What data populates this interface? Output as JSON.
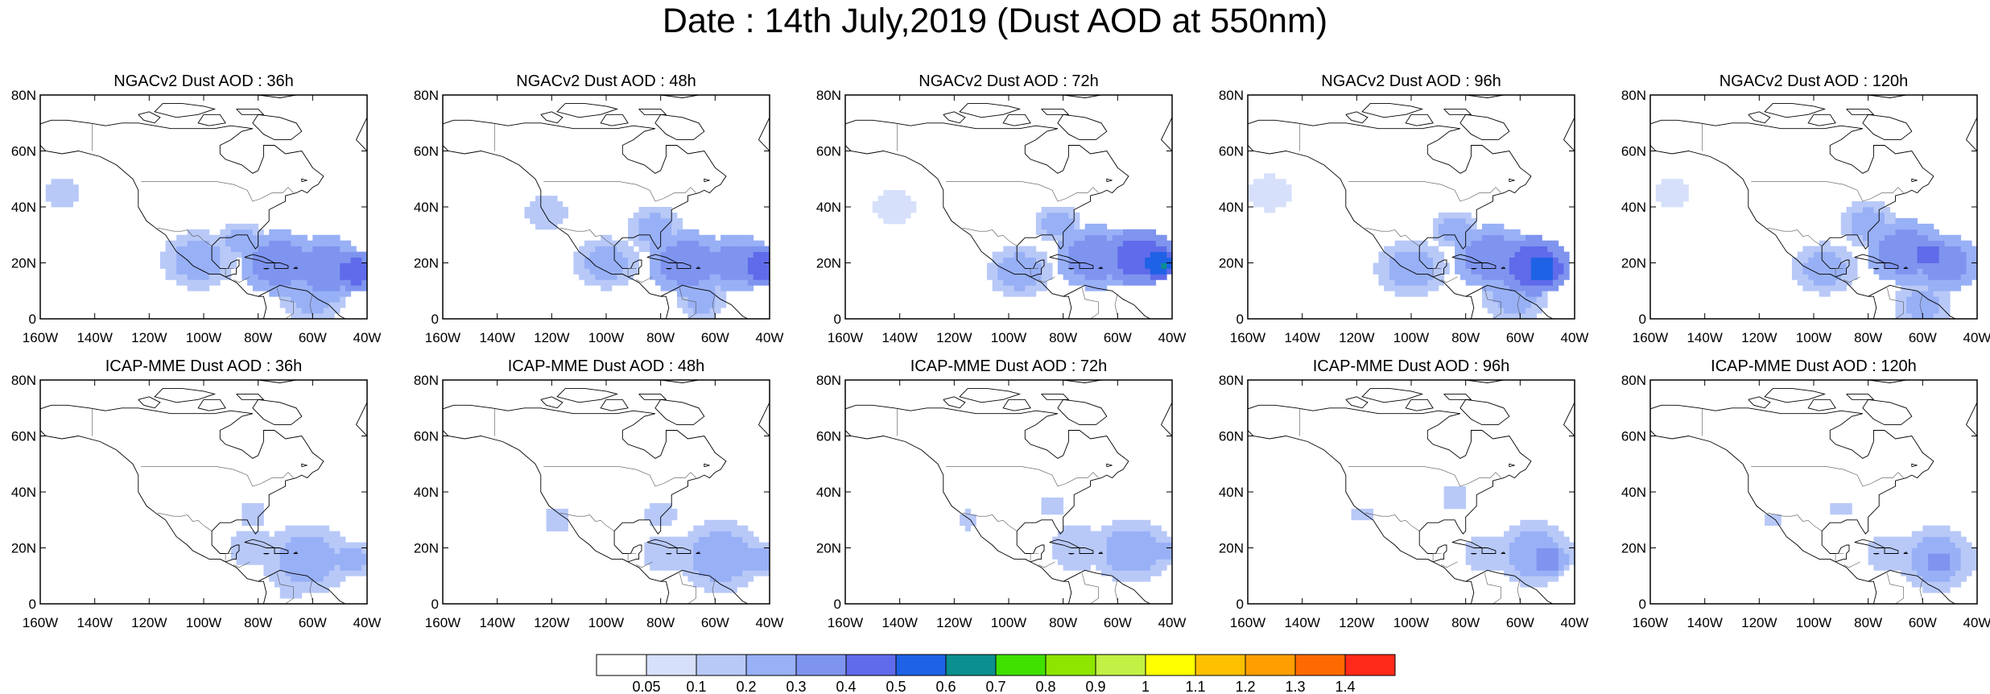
{
  "title": "Date : 14th July,2019 (Dust AOD at 550nm)",
  "axes": {
    "x_ticks": [
      "160W",
      "140W",
      "120W",
      "100W",
      "80W",
      "60W",
      "40W"
    ],
    "y_ticks": [
      "80N",
      "60N",
      "40N",
      "20N",
      "0"
    ]
  },
  "panels": [
    {
      "title": "NGACv2 Dust AOD : 36h",
      "model": "NGACv2",
      "lead": "36h"
    },
    {
      "title": "NGACv2 Dust AOD : 48h",
      "model": "NGACv2",
      "lead": "48h"
    },
    {
      "title": "NGACv2 Dust AOD : 72h",
      "model": "NGACv2",
      "lead": "72h"
    },
    {
      "title": "NGACv2 Dust AOD : 96h",
      "model": "NGACv2",
      "lead": "96h"
    },
    {
      "title": "NGACv2 Dust AOD : 120h",
      "model": "NGACv2",
      "lead": "120h"
    },
    {
      "title": "ICAP-MME Dust AOD : 36h",
      "model": "ICAP-MME",
      "lead": "36h"
    },
    {
      "title": "ICAP-MME Dust AOD : 48h",
      "model": "ICAP-MME",
      "lead": "48h"
    },
    {
      "title": "ICAP-MME Dust AOD : 72h",
      "model": "ICAP-MME",
      "lead": "72h"
    },
    {
      "title": "ICAP-MME Dust AOD : 96h",
      "model": "ICAP-MME",
      "lead": "96h"
    },
    {
      "title": "ICAP-MME Dust AOD : 120h",
      "model": "ICAP-MME",
      "lead": "120h"
    }
  ],
  "colorbar": {
    "labels": [
      "0.05",
      "0.1",
      "0.2",
      "0.3",
      "0.4",
      "0.5",
      "0.6",
      "0.7",
      "0.8",
      "0.9",
      "1",
      "1.1",
      "1.2",
      "1.3",
      "1.4"
    ],
    "colors": [
      "#ffffff",
      "#d6e0fa",
      "#b8c9f8",
      "#98b0f6",
      "#7e94ef",
      "#5f6bea",
      "#1e62e6",
      "#0b8f8f",
      "#40e000",
      "#8ee600",
      "#c2f044",
      "#ffff00",
      "#ffc000",
      "#ff9e00",
      "#ff6a00",
      "#ff2a1a"
    ]
  },
  "chart_data": {
    "type": "heatmap",
    "title": "Date : 14th July,2019 (Dust AOD at 550nm)",
    "xlim": [
      -160,
      -40
    ],
    "ylim": [
      0,
      80
    ],
    "units": "Dust AOD at 550nm",
    "panels": [
      {
        "name": "NGACv2 Dust AOD : 36h",
        "blobs": [
          {
            "lon": -152,
            "lat": 45,
            "r": 7,
            "aod": 0.1
          },
          {
            "lon": -102,
            "lat": 21,
            "r": 9,
            "aod": 0.2
          },
          {
            "lon": -86,
            "lat": 28,
            "r": 6,
            "aod": 0.2
          },
          {
            "lon": -72,
            "lat": 20,
            "r": 10,
            "aod": 0.3
          },
          {
            "lon": -55,
            "lat": 18,
            "r": 10,
            "aod": 0.3
          },
          {
            "lon": -44,
            "lat": 17,
            "r": 6,
            "aod": 0.4
          },
          {
            "lon": -60,
            "lat": 8,
            "r": 8,
            "aod": 0.2
          }
        ]
      },
      {
        "name": "NGACv2 Dust AOD : 48h",
        "blobs": [
          {
            "lon": -122,
            "lat": 38,
            "r": 8,
            "aod": 0.1
          },
          {
            "lon": -100,
            "lat": 20,
            "r": 8,
            "aod": 0.2
          },
          {
            "lon": -82,
            "lat": 32,
            "r": 7,
            "aod": 0.2
          },
          {
            "lon": -70,
            "lat": 20,
            "r": 10,
            "aod": 0.3
          },
          {
            "lon": -52,
            "lat": 20,
            "r": 9,
            "aod": 0.3
          },
          {
            "lon": -43,
            "lat": 19,
            "r": 6,
            "aod": 0.4
          },
          {
            "lon": -65,
            "lat": 7,
            "r": 6,
            "aod": 0.2
          }
        ]
      },
      {
        "name": "NGACv2 Dust AOD : 72h",
        "blobs": [
          {
            "lon": -142,
            "lat": 40,
            "r": 8,
            "aod": 0.05
          },
          {
            "lon": -96,
            "lat": 17,
            "r": 8,
            "aod": 0.2
          },
          {
            "lon": -82,
            "lat": 34,
            "r": 6,
            "aod": 0.2
          },
          {
            "lon": -68,
            "lat": 22,
            "r": 10,
            "aod": 0.3
          },
          {
            "lon": -52,
            "lat": 22,
            "r": 9,
            "aod": 0.4
          },
          {
            "lon": -45,
            "lat": 20,
            "r": 5,
            "aod": 0.5
          },
          {
            "lon": -43,
            "lat": 19,
            "r": 2,
            "aod": 0.6
          }
        ]
      },
      {
        "name": "NGACv2 Dust AOD : 96h",
        "blobs": [
          {
            "lon": -152,
            "lat": 45,
            "r": 8,
            "aod": 0.05
          },
          {
            "lon": -100,
            "lat": 18,
            "r": 9,
            "aod": 0.2
          },
          {
            "lon": -84,
            "lat": 32,
            "r": 6,
            "aod": 0.2
          },
          {
            "lon": -70,
            "lat": 22,
            "r": 10,
            "aod": 0.3
          },
          {
            "lon": -55,
            "lat": 19,
            "r": 9,
            "aod": 0.4
          },
          {
            "lon": -52,
            "lat": 18,
            "r": 5,
            "aod": 0.5
          },
          {
            "lon": -62,
            "lat": 8,
            "r": 8,
            "aod": 0.2
          }
        ]
      },
      {
        "name": "NGACv2 Dust AOD : 120h",
        "blobs": [
          {
            "lon": -152,
            "lat": 45,
            "r": 7,
            "aod": 0.05
          },
          {
            "lon": -96,
            "lat": 18,
            "r": 8,
            "aod": 0.2
          },
          {
            "lon": -80,
            "lat": 34,
            "r": 7,
            "aod": 0.2
          },
          {
            "lon": -66,
            "lat": 24,
            "r": 10,
            "aod": 0.3
          },
          {
            "lon": -52,
            "lat": 20,
            "r": 9,
            "aod": 0.3
          },
          {
            "lon": -58,
            "lat": 23,
            "r": 5,
            "aod": 0.4
          },
          {
            "lon": -60,
            "lat": 5,
            "r": 7,
            "aod": 0.2
          }
        ]
      },
      {
        "name": "ICAP-MME Dust AOD : 36h",
        "blobs": [
          {
            "lon": -82,
            "lat": 32,
            "r": 5,
            "aod": 0.1
          },
          {
            "lon": -82,
            "lat": 20,
            "r": 9,
            "aod": 0.1
          },
          {
            "lon": -62,
            "lat": 16,
            "r": 11,
            "aod": 0.2
          },
          {
            "lon": -46,
            "lat": 16,
            "r": 6,
            "aod": 0.2
          },
          {
            "lon": -68,
            "lat": 6,
            "r": 5,
            "aod": 0.1
          }
        ]
      },
      {
        "name": "ICAP-MME Dust AOD : 48h",
        "blobs": [
          {
            "lon": -118,
            "lat": 30,
            "r": 5,
            "aod": 0.1
          },
          {
            "lon": -80,
            "lat": 32,
            "r": 6,
            "aod": 0.1
          },
          {
            "lon": -78,
            "lat": 18,
            "r": 9,
            "aod": 0.1
          },
          {
            "lon": -58,
            "lat": 17,
            "r": 11,
            "aod": 0.2
          },
          {
            "lon": -44,
            "lat": 16,
            "r": 5,
            "aod": 0.2
          }
        ]
      },
      {
        "name": "ICAP-MME Dust AOD : 72h",
        "blobs": [
          {
            "lon": -115,
            "lat": 30,
            "r": 4,
            "aod": 0.1
          },
          {
            "lon": -84,
            "lat": 35,
            "r": 5,
            "aod": 0.1
          },
          {
            "lon": -75,
            "lat": 20,
            "r": 10,
            "aod": 0.1
          },
          {
            "lon": -55,
            "lat": 19,
            "r": 10,
            "aod": 0.2
          },
          {
            "lon": -45,
            "lat": 19,
            "r": 5,
            "aod": 0.2
          }
        ]
      },
      {
        "name": "ICAP-MME Dust AOD : 96h",
        "blobs": [
          {
            "lon": -118,
            "lat": 32,
            "r": 4,
            "aod": 0.1
          },
          {
            "lon": -84,
            "lat": 38,
            "r": 5,
            "aod": 0.1
          },
          {
            "lon": -72,
            "lat": 18,
            "r": 9,
            "aod": 0.1
          },
          {
            "lon": -55,
            "lat": 18,
            "r": 10,
            "aod": 0.2
          },
          {
            "lon": -50,
            "lat": 16,
            "r": 5,
            "aod": 0.3
          }
        ]
      },
      {
        "name": "ICAP-MME Dust AOD : 120h",
        "blobs": [
          {
            "lon": -115,
            "lat": 30,
            "r": 3,
            "aod": 0.1
          },
          {
            "lon": -90,
            "lat": 34,
            "r": 4,
            "aod": 0.1
          },
          {
            "lon": -72,
            "lat": 18,
            "r": 9,
            "aod": 0.1
          },
          {
            "lon": -55,
            "lat": 16,
            "r": 10,
            "aod": 0.2
          },
          {
            "lon": -54,
            "lat": 15,
            "r": 5,
            "aod": 0.3
          }
        ]
      }
    ]
  }
}
